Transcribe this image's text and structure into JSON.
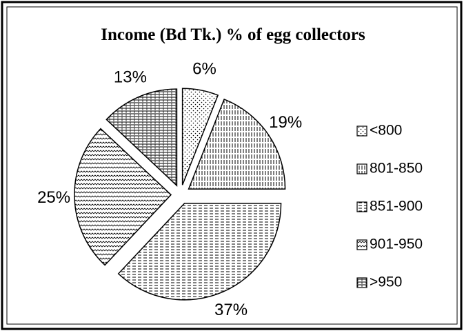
{
  "chart_data": {
    "type": "pie",
    "title": "Income (Bd Tk.) % of egg collectors",
    "categories": [
      "<800",
      "801-850",
      "851-900",
      "901-950",
      ">950"
    ],
    "values": [
      6,
      19,
      37,
      25,
      13
    ],
    "value_labels": [
      "6%",
      "19%",
      "37%",
      "25%",
      "13%"
    ],
    "legend": "right"
  }
}
